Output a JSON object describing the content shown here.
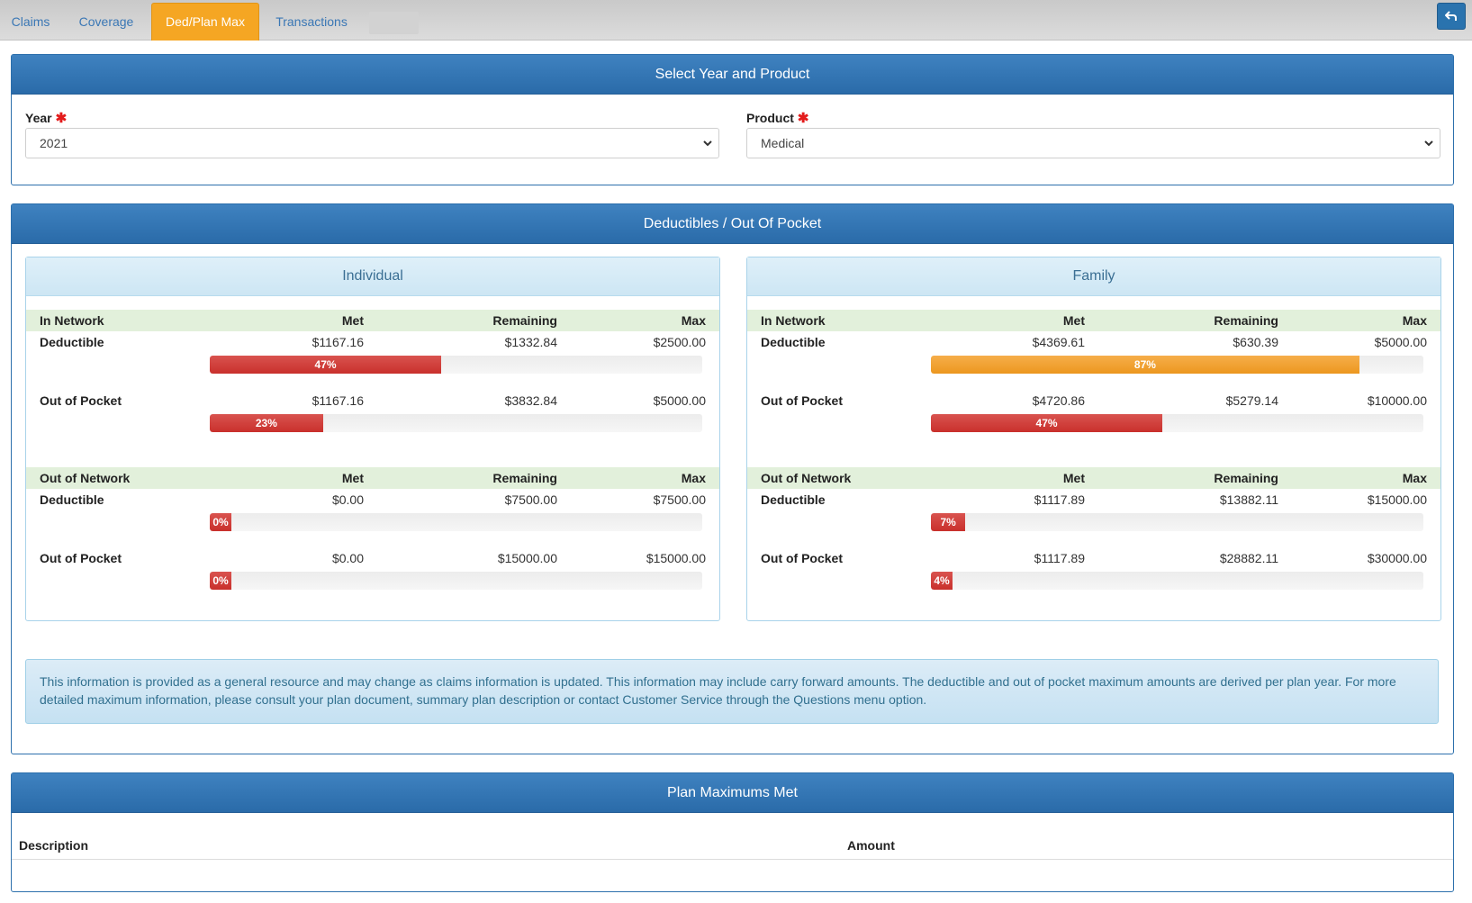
{
  "tabs": [
    {
      "label": "Claims",
      "active": false
    },
    {
      "label": "Coverage",
      "active": false
    },
    {
      "label": "Ded/Plan Max",
      "active": true
    },
    {
      "label": "Transactions",
      "active": false
    }
  ],
  "back_button": {
    "icon": "back-arrow-icon"
  },
  "select_panel": {
    "title": "Select Year and Product",
    "year": {
      "label": "Year",
      "value": "2021",
      "required": true
    },
    "product": {
      "label": "Product",
      "value": "Medical",
      "required": true
    }
  },
  "deductibles_panel": {
    "title": "Deductibles / Out Of Pocket",
    "columns": {
      "met": "Met",
      "remaining": "Remaining",
      "max": "Max"
    },
    "individual": {
      "title": "Individual",
      "in_network": {
        "label": "In Network",
        "deductible": {
          "label": "Deductible",
          "met": "$1167.16",
          "remaining": "$1332.84",
          "max": "$2500.00",
          "percent": 47,
          "percent_label": "47%",
          "color": "#c9302c"
        },
        "oop": {
          "label": "Out of Pocket",
          "met": "$1167.16",
          "remaining": "$3832.84",
          "max": "$5000.00",
          "percent": 23,
          "percent_label": "23%",
          "color": "#c9302c"
        }
      },
      "out_network": {
        "label": "Out of Network",
        "deductible": {
          "label": "Deductible",
          "met": "$0.00",
          "remaining": "$7500.00",
          "max": "$7500.00",
          "percent": 0,
          "percent_label": "0%",
          "color": "#c9302c"
        },
        "oop": {
          "label": "Out of Pocket",
          "met": "$0.00",
          "remaining": "$15000.00",
          "max": "$15000.00",
          "percent": 0,
          "percent_label": "0%",
          "color": "#c9302c"
        }
      }
    },
    "family": {
      "title": "Family",
      "in_network": {
        "label": "In Network",
        "deductible": {
          "label": "Deductible",
          "met": "$4369.61",
          "remaining": "$630.39",
          "max": "$5000.00",
          "percent": 87,
          "percent_label": "87%",
          "color": "#ec971f"
        },
        "oop": {
          "label": "Out of Pocket",
          "met": "$4720.86",
          "remaining": "$5279.14",
          "max": "$10000.00",
          "percent": 47,
          "percent_label": "47%",
          "color": "#c9302c"
        }
      },
      "out_network": {
        "label": "Out of Network",
        "deductible": {
          "label": "Deductible",
          "met": "$1117.89",
          "remaining": "$13882.11",
          "max": "$15000.00",
          "percent": 7,
          "percent_label": "7%",
          "color": "#c9302c"
        },
        "oop": {
          "label": "Out of Pocket",
          "met": "$1117.89",
          "remaining": "$28882.11",
          "max": "$30000.00",
          "percent": 4,
          "percent_label": "4%",
          "color": "#c9302c"
        }
      }
    },
    "info_text": "This information is provided as a general resource and may change as claims information is updated. This information may include carry forward amounts. The deductible and out of pocket maximum amounts are derived per plan year. For more detailed maximum information, please consult your plan document, summary plan description or contact Customer Service through the Questions menu option."
  },
  "plan_max_panel": {
    "title": "Plan Maximums Met",
    "columns": {
      "description": "Description",
      "amount": "Amount"
    }
  }
}
